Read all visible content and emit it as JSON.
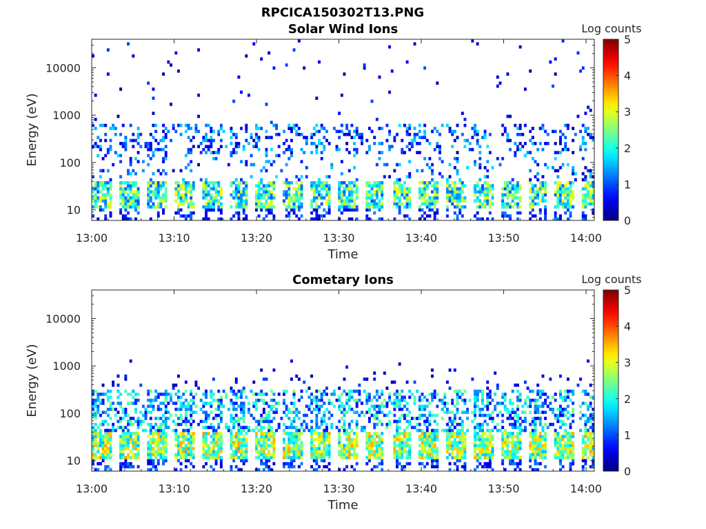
{
  "figure": {
    "title": "RPCICA150302T13.PNG"
  },
  "chart_data": [
    {
      "type": "heatmap",
      "title": "Solar Wind Ions",
      "xlabel": "Time",
      "ylabel": "Energy (eV)",
      "x_ticks": [
        "13:00",
        "13:10",
        "13:20",
        "13:30",
        "13:40",
        "13:50",
        "14:00"
      ],
      "x_range": [
        "13:00",
        "14:01"
      ],
      "y_scale": "log",
      "y_ticks": [
        {
          "value": 10,
          "label": "10"
        },
        {
          "value": 100,
          "label": "100"
        },
        {
          "value": 1000,
          "label": "1000"
        },
        {
          "value": 10000,
          "label": "10000"
        }
      ],
      "y_range": [
        6,
        40000
      ],
      "colorbar": {
        "label": "Log counts",
        "range": [
          0,
          5
        ],
        "ticks": [
          "0",
          "1",
          "2",
          "3",
          "4",
          "5"
        ],
        "colormap": "jet"
      },
      "features": {
        "low_band_eV": [
          10,
          35
        ],
        "low_band_level": [
          1.0,
          3.2
        ],
        "mid_band_eV": [
          60,
          600
        ],
        "mid_band_level": [
          0.2,
          1.8
        ],
        "sparse_high_eV": [
          600,
          40000
        ],
        "sweep_period_min": 3.3
      }
    },
    {
      "type": "heatmap",
      "title": "Cometary Ions",
      "xlabel": "Time",
      "ylabel": "Energy (eV)",
      "x_ticks": [
        "13:00",
        "13:10",
        "13:20",
        "13:30",
        "13:40",
        "13:50",
        "14:00"
      ],
      "x_range": [
        "13:00",
        "14:01"
      ],
      "y_scale": "log",
      "y_ticks": [
        {
          "value": 10,
          "label": "10"
        },
        {
          "value": 100,
          "label": "100"
        },
        {
          "value": 1000,
          "label": "1000"
        },
        {
          "value": 10000,
          "label": "10000"
        }
      ],
      "y_range": [
        6,
        40000
      ],
      "colorbar": {
        "label": "Log counts",
        "range": [
          0,
          5
        ],
        "ticks": [
          "0",
          "1",
          "2",
          "3",
          "4",
          "5"
        ],
        "colormap": "jet"
      },
      "features": {
        "low_band_eV": [
          10,
          40
        ],
        "low_band_level": [
          1.5,
          3.6
        ],
        "mid_band_eV": [
          40,
          300
        ],
        "mid_band_level": [
          0.5,
          2.5
        ],
        "rising_streaks_max_eV": 1500,
        "sweep_period_min": 3.3
      }
    }
  ]
}
